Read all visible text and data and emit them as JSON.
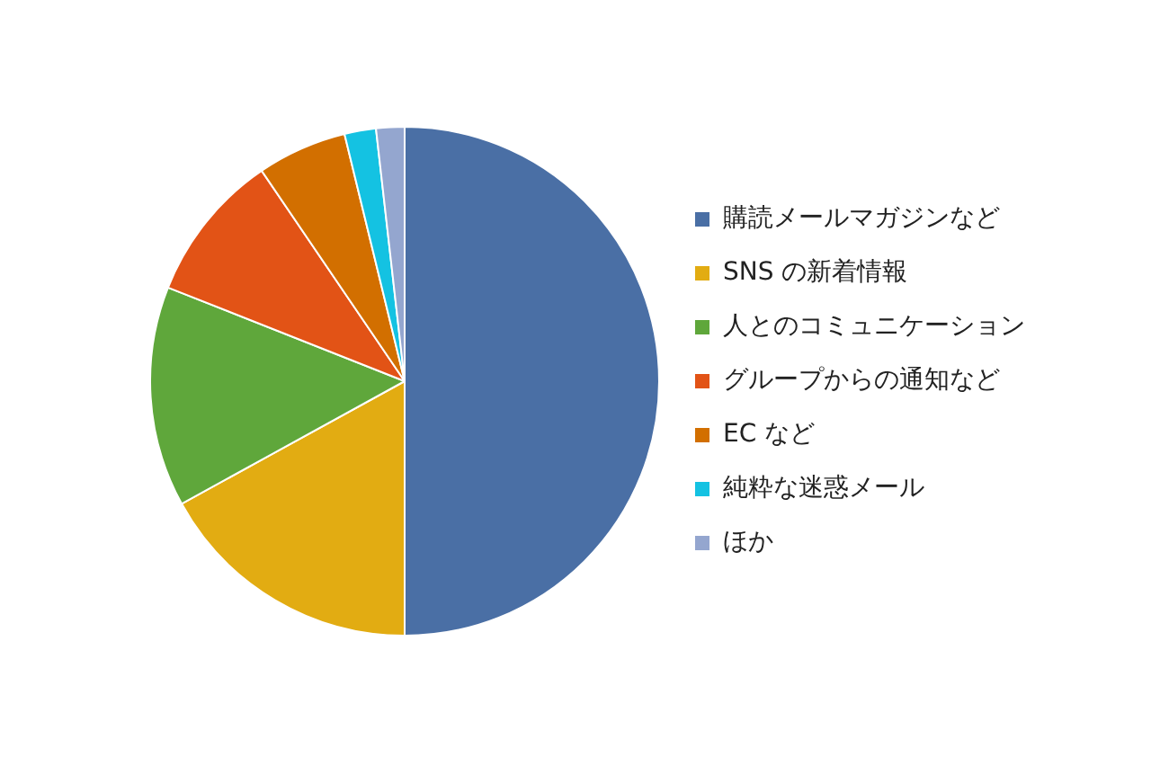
{
  "chart_data": {
    "type": "pie",
    "categories": [
      "購読メールマガジンなど",
      "SNS の新着情報",
      "人とのコミュニケーション",
      "グループからの通知など",
      "EC など",
      "純粋な迷惑メール",
      "ほか"
    ],
    "values": [
      50,
      17,
      14,
      9.5,
      5.7,
      2,
      1.8
    ],
    "colors": [
      "#4a6fa5",
      "#e2ac12",
      "#5fa73b",
      "#e25316",
      "#d26f00",
      "#14c2e2",
      "#94a6cf"
    ],
    "legend": "right"
  }
}
